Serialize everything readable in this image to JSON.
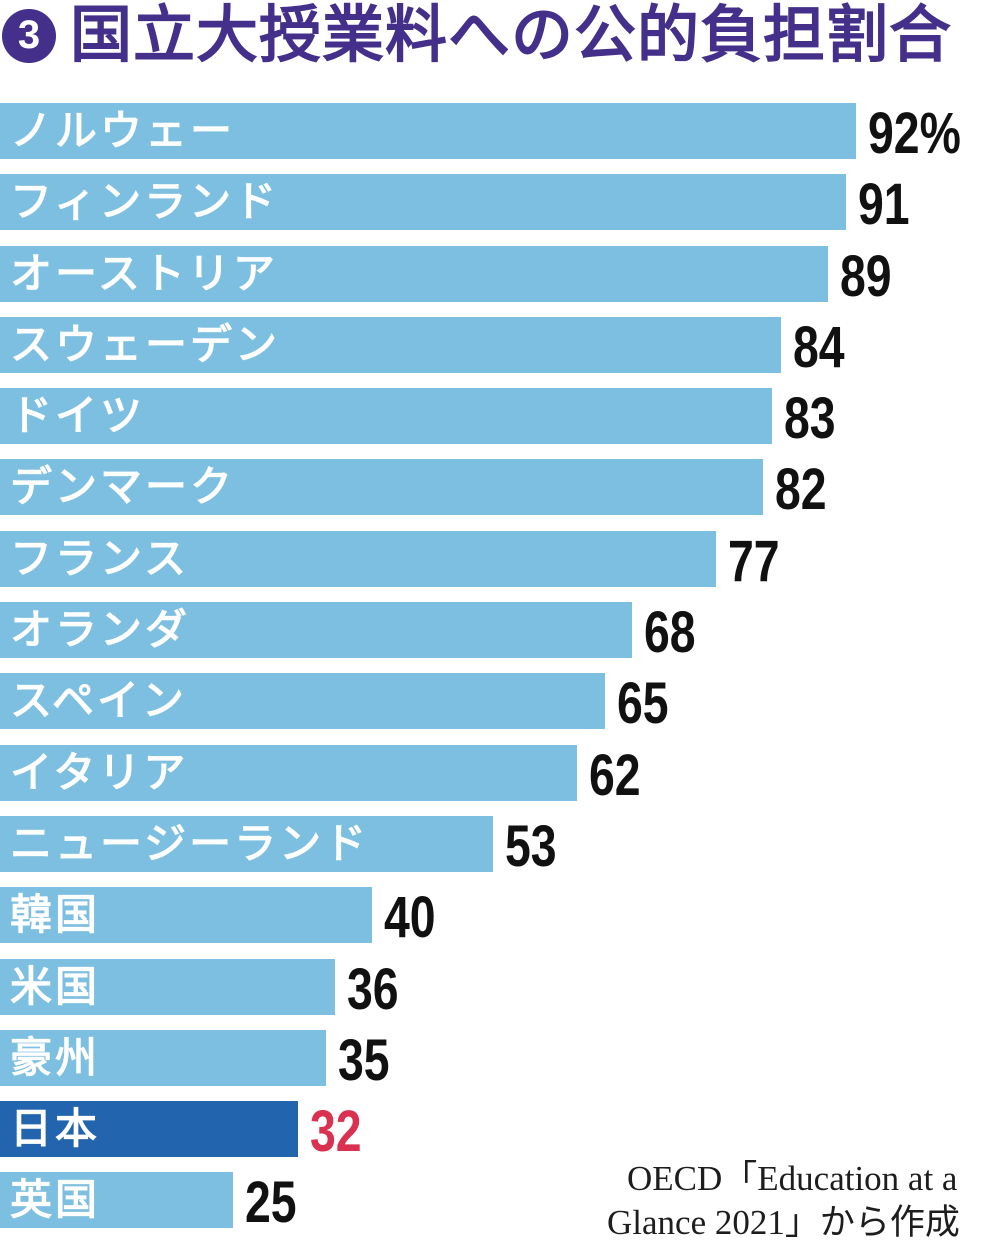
{
  "title": {
    "badge": "3",
    "text": "国立大授業料への公的負担割合"
  },
  "colors": {
    "title": "#44308a",
    "badge_background": "#44308a",
    "bar": "#7dbfe0",
    "bar_highlight": "#2264ad",
    "value": "#111111",
    "value_highlight": "#d9314f",
    "country_label": "#ffffff"
  },
  "source": {
    "line1": "OECD「Education at a",
    "line2": "Glance 2021」から作成"
  },
  "chart_data": {
    "type": "bar",
    "orientation": "horizontal",
    "title": "国立大授業料への公的負担割合",
    "unit": "%",
    "xlim": [
      0,
      100
    ],
    "grid": false,
    "legend": false,
    "categories": [
      "ノルウェー",
      "フィンランド",
      "オーストリア",
      "スウェーデン",
      "ドイツ",
      "デンマーク",
      "フランス",
      "オランダ",
      "スペイン",
      "イタリア",
      "ニュージーランド",
      "韓国",
      "米国",
      "豪州",
      "日本",
      "英国"
    ],
    "values": [
      92,
      91,
      89,
      84,
      83,
      82,
      77,
      68,
      65,
      62,
      53,
      40,
      36,
      35,
      32,
      25
    ],
    "value_labels": [
      "92%",
      "91",
      "89",
      "84",
      "83",
      "82",
      "77",
      "68",
      "65",
      "62",
      "53",
      "40",
      "36",
      "35",
      "32",
      "25"
    ],
    "highlight_category": "日本",
    "highlight_index": 14,
    "source": "OECD「Education at a Glance 2021」から作成"
  }
}
